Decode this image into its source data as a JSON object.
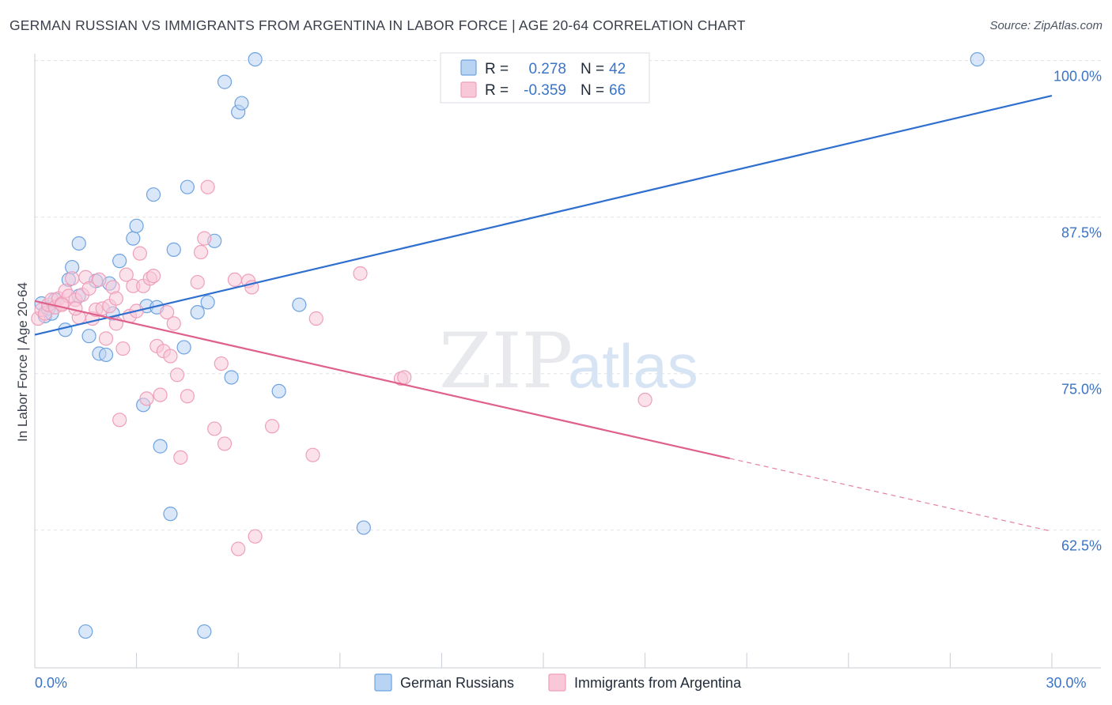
{
  "header": {
    "title": "GERMAN RUSSIAN VS IMMIGRANTS FROM ARGENTINA IN LABOR FORCE | AGE 20-64 CORRELATION CHART",
    "source": "Source: ZipAtlas.com"
  },
  "watermark": {
    "zip": "ZIP",
    "atlas": "atlas"
  },
  "chart_data": {
    "type": "scatter",
    "title": "GERMAN RUSSIAN VS IMMIGRANTS FROM ARGENTINA IN LABOR FORCE | AGE 20-64 CORRELATION CHART",
    "xlabel": "",
    "ylabel": "In Labor Force | Age 20-64",
    "xlim": [
      0,
      30
    ],
    "ylim": [
      51.5,
      102
    ],
    "x_tick_labels": [
      {
        "value": 0,
        "label": "0.0%"
      },
      {
        "value": 30,
        "label": "30.0%"
      }
    ],
    "y_tick_labels": [
      {
        "value": 100,
        "label": "100.0%"
      },
      {
        "value": 87.5,
        "label": "87.5%"
      },
      {
        "value": 75,
        "label": "75.0%"
      },
      {
        "value": 62.5,
        "label": "62.5%"
      }
    ],
    "legend": {
      "placement": "top-center",
      "rows": [
        {
          "r_label": "R =",
          "r_value": "0.278",
          "n_label": "N =",
          "n_value": "42"
        },
        {
          "r_label": "R =",
          "r_value": "-0.359",
          "n_label": "N =",
          "n_value": "66"
        }
      ]
    },
    "series": [
      {
        "name": "German Russians",
        "color": "#6fa3e0",
        "fill": "#b9d3f2",
        "line_color": "#2f6fcf",
        "trend": {
          "x": [
            0,
            30
          ],
          "y": [
            78.1,
            97.2
          ],
          "dashed_from": null
        },
        "points": [
          {
            "x": 0.2,
            "y": 80.6
          },
          {
            "x": 0.3,
            "y": 79.6
          },
          {
            "x": 0.4,
            "y": 80.2
          },
          {
            "x": 0.5,
            "y": 79.8
          },
          {
            "x": 0.9,
            "y": 78.5
          },
          {
            "x": 1.0,
            "y": 82.5
          },
          {
            "x": 1.1,
            "y": 83.5
          },
          {
            "x": 1.3,
            "y": 81.2
          },
          {
            "x": 1.3,
            "y": 85.4
          },
          {
            "x": 1.6,
            "y": 78.0
          },
          {
            "x": 1.8,
            "y": 82.4
          },
          {
            "x": 1.9,
            "y": 76.6
          },
          {
            "x": 2.1,
            "y": 76.5
          },
          {
            "x": 2.2,
            "y": 82.2
          },
          {
            "x": 2.3,
            "y": 79.8
          },
          {
            "x": 2.5,
            "y": 84.0
          },
          {
            "x": 2.9,
            "y": 85.8
          },
          {
            "x": 3.0,
            "y": 86.8
          },
          {
            "x": 3.2,
            "y": 72.5
          },
          {
            "x": 3.3,
            "y": 80.4
          },
          {
            "x": 3.5,
            "y": 89.3
          },
          {
            "x": 3.6,
            "y": 80.3
          },
          {
            "x": 3.7,
            "y": 69.2
          },
          {
            "x": 4.0,
            "y": 63.8
          },
          {
            "x": 4.1,
            "y": 84.9
          },
          {
            "x": 4.4,
            "y": 77.1
          },
          {
            "x": 4.5,
            "y": 89.9
          },
          {
            "x": 4.8,
            "y": 79.9
          },
          {
            "x": 5.0,
            "y": 54.4
          },
          {
            "x": 5.1,
            "y": 80.7
          },
          {
            "x": 5.3,
            "y": 85.6
          },
          {
            "x": 5.6,
            "y": 98.3
          },
          {
            "x": 5.8,
            "y": 74.7
          },
          {
            "x": 6.0,
            "y": 95.9
          },
          {
            "x": 6.1,
            "y": 96.6
          },
          {
            "x": 6.5,
            "y": 100.1
          },
          {
            "x": 7.2,
            "y": 73.6
          },
          {
            "x": 7.8,
            "y": 80.5
          },
          {
            "x": 9.7,
            "y": 62.7
          },
          {
            "x": 1.5,
            "y": 54.4
          },
          {
            "x": 27.8,
            "y": 100.1
          },
          {
            "x": 0.6,
            "y": 80.9
          }
        ]
      },
      {
        "name": "Immigrants from Argentina",
        "color": "#ef9fb9",
        "fill": "#f8c8d8",
        "line_color": "#e0608c",
        "trend": {
          "x": [
            0,
            30
          ],
          "y": [
            80.8,
            62.4
          ],
          "dashed_from": 20.5
        },
        "points": [
          {
            "x": 0.1,
            "y": 79.4
          },
          {
            "x": 0.2,
            "y": 80.1
          },
          {
            "x": 0.3,
            "y": 79.8
          },
          {
            "x": 0.4,
            "y": 80.5
          },
          {
            "x": 0.5,
            "y": 80.9
          },
          {
            "x": 0.6,
            "y": 80.3
          },
          {
            "x": 0.7,
            "y": 81.0
          },
          {
            "x": 0.8,
            "y": 80.6
          },
          {
            "x": 0.9,
            "y": 81.6
          },
          {
            "x": 1.0,
            "y": 81.2
          },
          {
            "x": 1.1,
            "y": 82.6
          },
          {
            "x": 1.2,
            "y": 80.9
          },
          {
            "x": 1.3,
            "y": 79.5
          },
          {
            "x": 1.4,
            "y": 81.3
          },
          {
            "x": 1.5,
            "y": 82.7
          },
          {
            "x": 1.6,
            "y": 81.8
          },
          {
            "x": 1.7,
            "y": 79.4
          },
          {
            "x": 1.8,
            "y": 80.1
          },
          {
            "x": 1.9,
            "y": 82.5
          },
          {
            "x": 2.0,
            "y": 80.2
          },
          {
            "x": 2.1,
            "y": 77.8
          },
          {
            "x": 2.2,
            "y": 80.4
          },
          {
            "x": 2.3,
            "y": 81.9
          },
          {
            "x": 2.4,
            "y": 79.0
          },
          {
            "x": 2.5,
            "y": 71.3
          },
          {
            "x": 2.6,
            "y": 77.0
          },
          {
            "x": 2.7,
            "y": 82.9
          },
          {
            "x": 2.8,
            "y": 79.6
          },
          {
            "x": 2.9,
            "y": 82.0
          },
          {
            "x": 3.0,
            "y": 80.0
          },
          {
            "x": 3.1,
            "y": 84.6
          },
          {
            "x": 3.2,
            "y": 82.0
          },
          {
            "x": 3.3,
            "y": 73.0
          },
          {
            "x": 3.4,
            "y": 82.6
          },
          {
            "x": 3.5,
            "y": 82.8
          },
          {
            "x": 3.6,
            "y": 77.2
          },
          {
            "x": 3.7,
            "y": 73.3
          },
          {
            "x": 3.8,
            "y": 76.8
          },
          {
            "x": 3.9,
            "y": 79.9
          },
          {
            "x": 4.0,
            "y": 76.4
          },
          {
            "x": 4.1,
            "y": 79.0
          },
          {
            "x": 4.2,
            "y": 74.9
          },
          {
            "x": 4.3,
            "y": 68.3
          },
          {
            "x": 4.5,
            "y": 73.2
          },
          {
            "x": 4.8,
            "y": 82.3
          },
          {
            "x": 4.9,
            "y": 84.7
          },
          {
            "x": 5.0,
            "y": 85.8
          },
          {
            "x": 5.1,
            "y": 89.9
          },
          {
            "x": 5.3,
            "y": 70.6
          },
          {
            "x": 5.5,
            "y": 75.8
          },
          {
            "x": 5.6,
            "y": 69.4
          },
          {
            "x": 5.9,
            "y": 82.5
          },
          {
            "x": 6.0,
            "y": 61.0
          },
          {
            "x": 6.3,
            "y": 82.4
          },
          {
            "x": 6.4,
            "y": 81.9
          },
          {
            "x": 6.5,
            "y": 62.0
          },
          {
            "x": 7.0,
            "y": 70.8
          },
          {
            "x": 8.2,
            "y": 68.5
          },
          {
            "x": 8.3,
            "y": 79.4
          },
          {
            "x": 9.6,
            "y": 83.0
          },
          {
            "x": 10.8,
            "y": 74.6
          },
          {
            "x": 10.9,
            "y": 74.7
          },
          {
            "x": 18.0,
            "y": 72.9
          },
          {
            "x": 1.2,
            "y": 80.2
          },
          {
            "x": 0.8,
            "y": 80.5
          },
          {
            "x": 2.4,
            "y": 81.0
          }
        ]
      }
    ]
  }
}
